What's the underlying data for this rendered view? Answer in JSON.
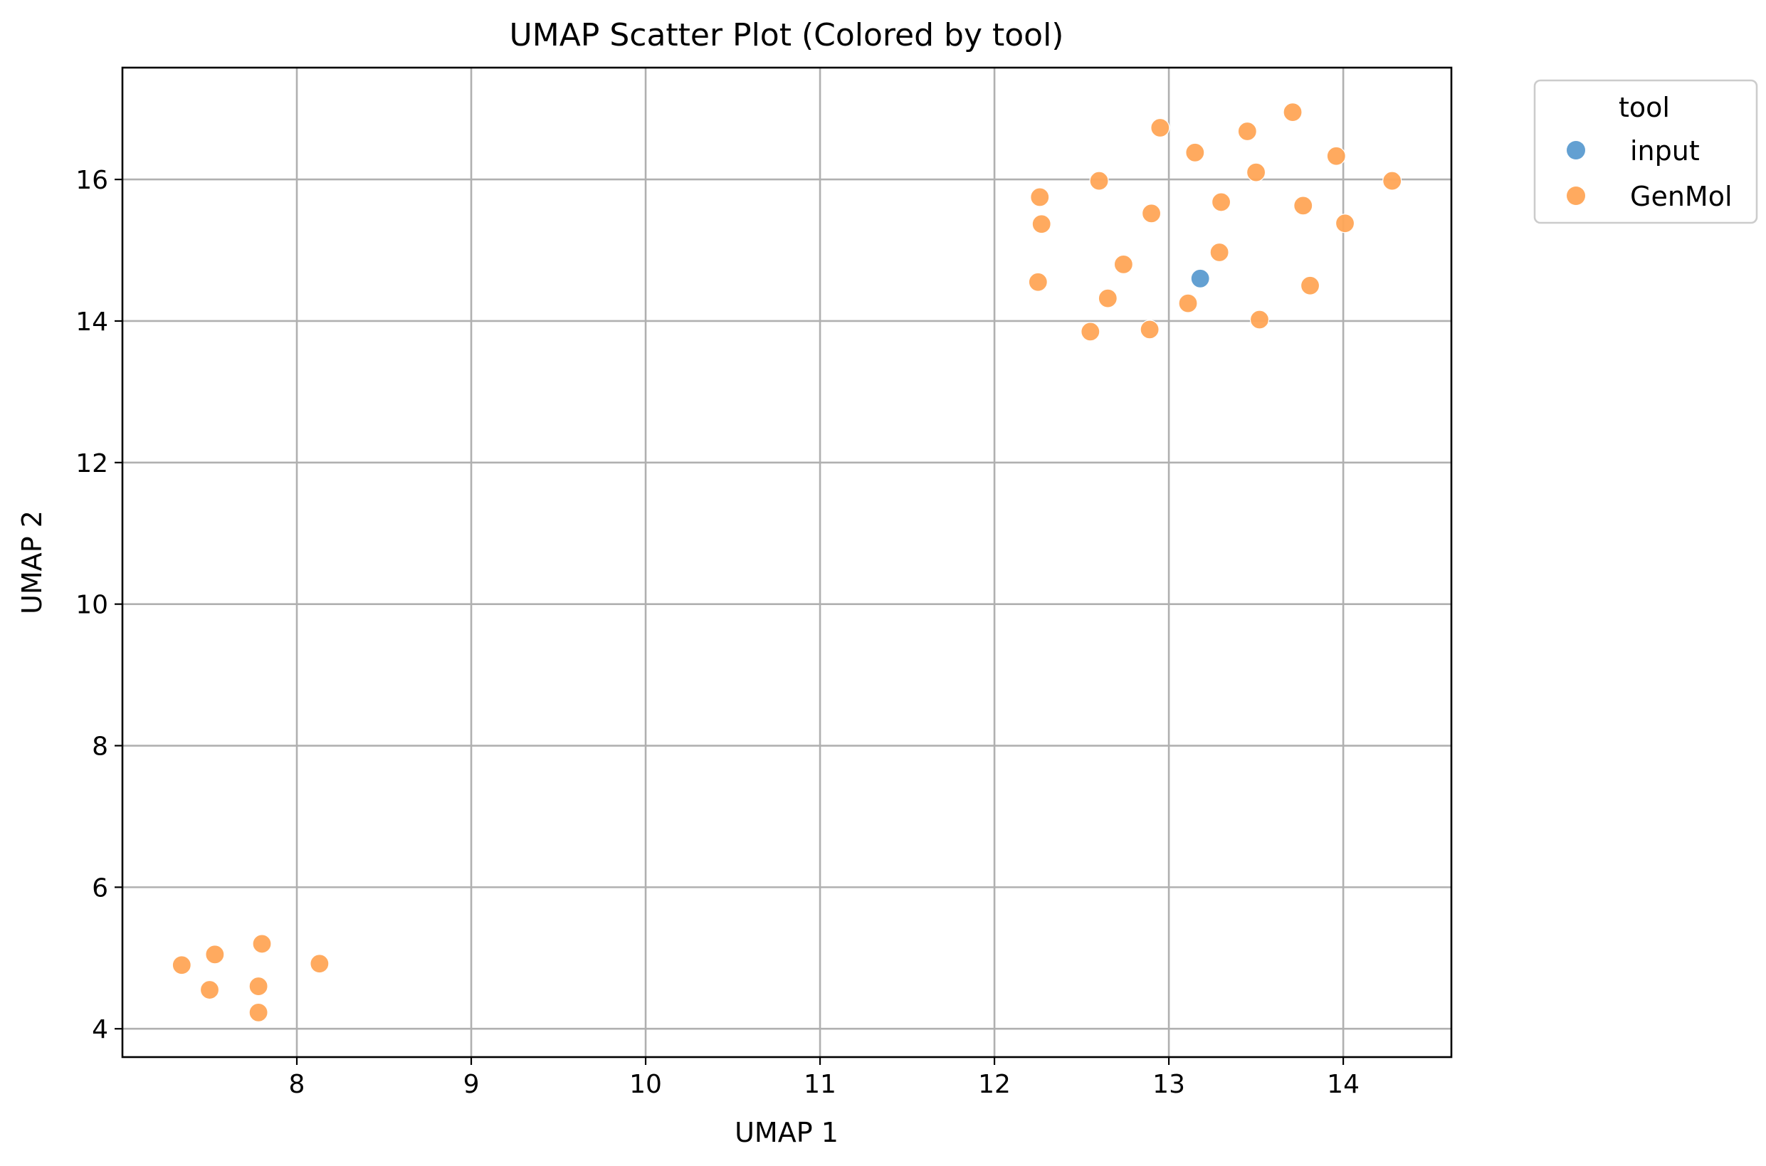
{
  "chart_data": {
    "type": "scatter",
    "title": "UMAP Scatter Plot (Colored by tool)",
    "xlabel": "UMAP 1",
    "ylabel": "UMAP 2",
    "xlim": [
      7.0,
      14.62
    ],
    "ylim": [
      3.6,
      17.58
    ],
    "xticks": [
      8,
      9,
      10,
      11,
      12,
      13,
      14
    ],
    "yticks": [
      4,
      6,
      8,
      10,
      12,
      14,
      16
    ],
    "grid": true,
    "legend": {
      "title": "tool",
      "placement": "outside top-right"
    },
    "series": [
      {
        "name": "input",
        "color": "#5b9bd0",
        "points": [
          {
            "x": 13.18,
            "y": 14.6
          }
        ]
      },
      {
        "name": "GenMol",
        "color": "#ffa556",
        "points": [
          {
            "x": 7.34,
            "y": 4.9
          },
          {
            "x": 7.53,
            "y": 5.05
          },
          {
            "x": 7.8,
            "y": 5.2
          },
          {
            "x": 7.5,
            "y": 4.55
          },
          {
            "x": 7.78,
            "y": 4.6
          },
          {
            "x": 7.78,
            "y": 4.23
          },
          {
            "x": 8.13,
            "y": 4.92
          },
          {
            "x": 12.26,
            "y": 15.75
          },
          {
            "x": 12.27,
            "y": 15.37
          },
          {
            "x": 12.25,
            "y": 14.55
          },
          {
            "x": 12.55,
            "y": 13.85
          },
          {
            "x": 12.6,
            "y": 15.98
          },
          {
            "x": 12.65,
            "y": 14.32
          },
          {
            "x": 12.74,
            "y": 14.8
          },
          {
            "x": 12.9,
            "y": 15.52
          },
          {
            "x": 12.89,
            "y": 13.88
          },
          {
            "x": 12.95,
            "y": 16.73
          },
          {
            "x": 13.11,
            "y": 14.25
          },
          {
            "x": 13.15,
            "y": 16.38
          },
          {
            "x": 13.29,
            "y": 14.97
          },
          {
            "x": 13.3,
            "y": 15.68
          },
          {
            "x": 13.45,
            "y": 16.68
          },
          {
            "x": 13.5,
            "y": 16.1
          },
          {
            "x": 13.52,
            "y": 14.02
          },
          {
            "x": 13.71,
            "y": 16.95
          },
          {
            "x": 13.77,
            "y": 15.63
          },
          {
            "x": 13.81,
            "y": 14.5
          },
          {
            "x": 13.96,
            "y": 16.33
          },
          {
            "x": 14.01,
            "y": 15.38
          },
          {
            "x": 14.28,
            "y": 15.98
          }
        ]
      }
    ]
  }
}
